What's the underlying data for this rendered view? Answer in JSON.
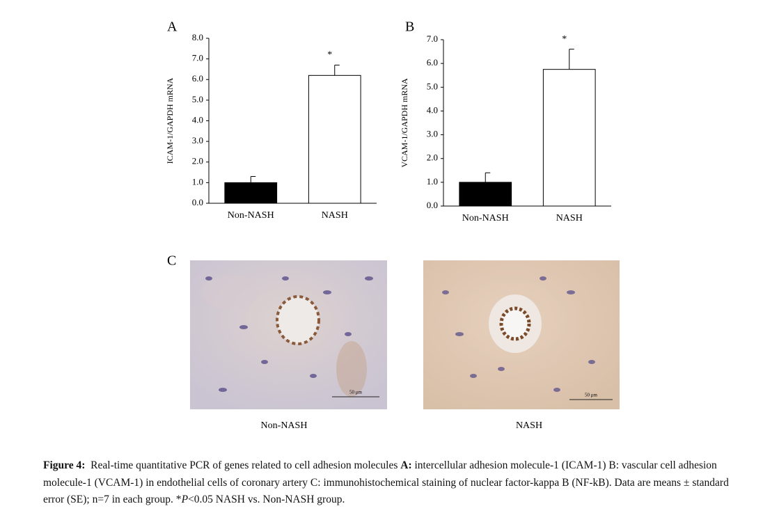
{
  "chart_data": [
    {
      "type": "bar",
      "panel": "A",
      "ylabel": "ICAM-1/GAPDH mRNA",
      "categories": [
        "Non-NASH",
        "NASH"
      ],
      "values": [
        1.0,
        6.2
      ],
      "errors": [
        0.3,
        0.5
      ],
      "colors": [
        "#000000",
        "#ffffff"
      ],
      "annotation": "*",
      "ylim": [
        0,
        8
      ],
      "yticks": [
        {
          "value": 0,
          "label": "0.0"
        },
        {
          "value": 1,
          "label": "1.0"
        },
        {
          "value": 2,
          "label": "2.0"
        },
        {
          "value": 3,
          "label": "3.0"
        },
        {
          "value": 4,
          "label": "4.0"
        },
        {
          "value": 5,
          "label": "5.0"
        },
        {
          "value": 6,
          "label": "6.0"
        },
        {
          "value": 7,
          "label": "7.0"
        },
        {
          "value": 8,
          "label": "8.0"
        }
      ]
    },
    {
      "type": "bar",
      "panel": "B",
      "ylabel": "VCAM-1/GAPDH mRNA",
      "categories": [
        "Non-NASH",
        "NASH"
      ],
      "values": [
        1.0,
        5.75
      ],
      "errors": [
        0.4,
        0.85
      ],
      "colors": [
        "#000000",
        "#ffffff"
      ],
      "annotation": "*",
      "ylim": [
        0,
        7
      ],
      "yticks": [
        {
          "value": 0,
          "label": "0.0"
        },
        {
          "value": 1,
          "label": "1.0"
        },
        {
          "value": 2,
          "label": "2.0"
        },
        {
          "value": 3,
          "label": "3.0"
        },
        {
          "value": 4,
          "label": "4.0"
        },
        {
          "value": 5,
          "label": "5.0"
        },
        {
          "value": 6,
          "label": "6.0"
        },
        {
          "value": 7,
          "label": "7.0"
        }
      ]
    }
  ],
  "panel_c": {
    "label": "C",
    "images": [
      {
        "caption": "Non-NASH",
        "scale_bar": "50 μm"
      },
      {
        "caption": "NASH",
        "scale_bar": "50 μm"
      }
    ]
  },
  "caption": {
    "label": "Figure 4:",
    "parts": [
      "Real-time quantitative PCR of genes related to cell adhesion molecules ",
      "A:",
      " intercellular adhesion molecule-1 (ICAM-1) ",
      "B:",
      " vascular cell adhesion molecule-1 (VCAM-1) in endothelial cells of coronary artery ",
      "C:",
      " immunohistochemical staining of nuclear factor-kappa B (NF-kB). Data are means ± standard error (SE); n=7 in each group. *",
      "P",
      "<0.05 NASH vs. Non-NASH group."
    ]
  }
}
